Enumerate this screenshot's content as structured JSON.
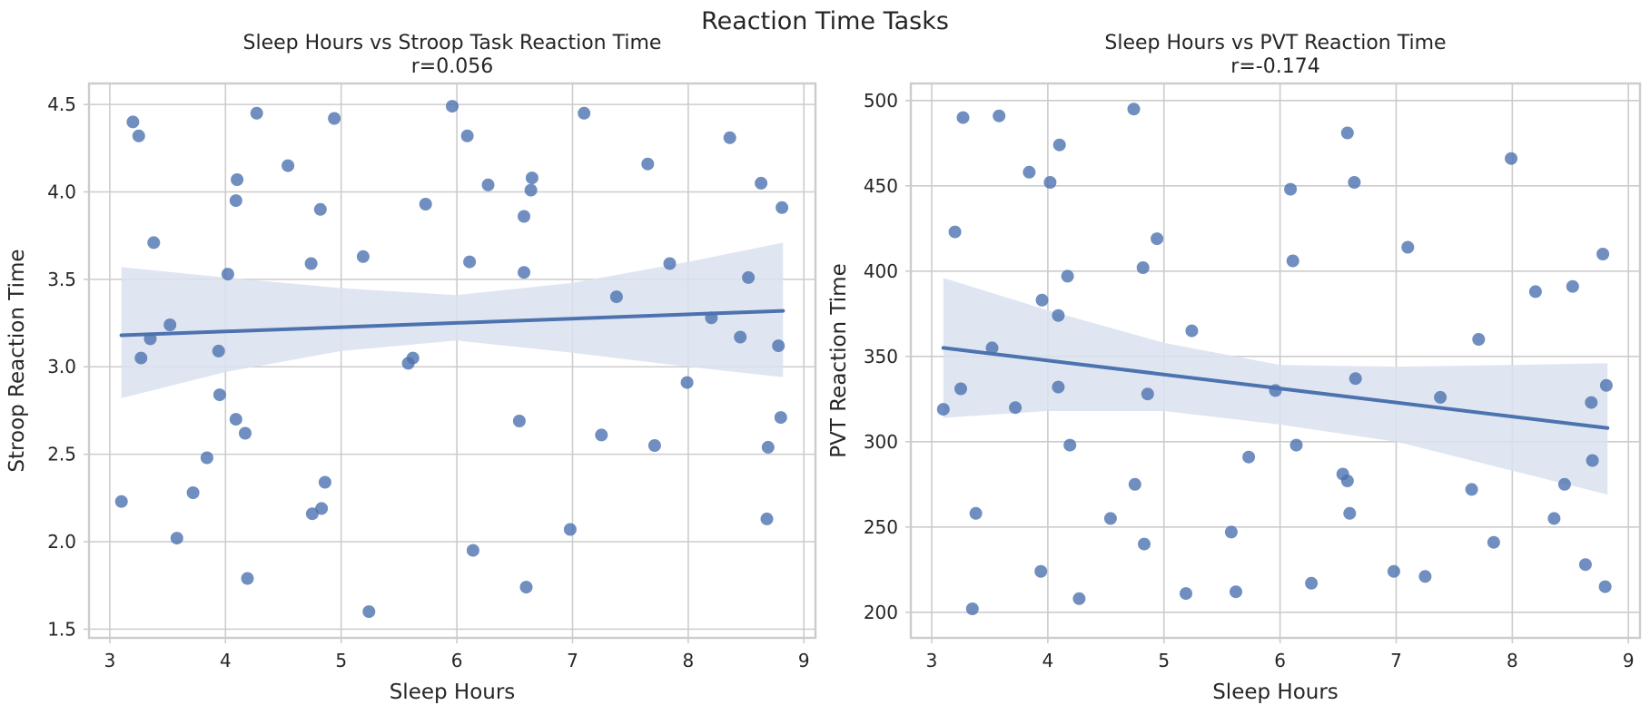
{
  "figure": {
    "suptitle": "Reaction Time Tasks"
  },
  "colors": {
    "point": "#4c72b0",
    "line": "#4c72b0",
    "band": "#dbe2ef",
    "grid": "#cccccc",
    "frame": "#cccccc",
    "text": "#262626"
  },
  "chart_data": [
    {
      "type": "scatter",
      "title": "Sleep Hours vs Stroop Task Reaction Time",
      "subtitle": "r=0.056",
      "xlabel": "Sleep Hours",
      "ylabel": "Stroop Reaction Time",
      "xlim": [
        2.82,
        9.1
      ],
      "ylim": [
        1.45,
        4.62
      ],
      "xticks": [
        3,
        4,
        5,
        6,
        7,
        8,
        9
      ],
      "yticks": [
        1.5,
        2.0,
        2.5,
        3.0,
        3.5,
        4.0,
        4.5
      ],
      "ytick_labels": [
        "1.5",
        "2.0",
        "2.5",
        "3.0",
        "3.5",
        "4.0",
        "4.5"
      ],
      "grid": true,
      "regression": {
        "x": [
          3.1,
          8.82
        ],
        "y": [
          3.18,
          3.32
        ]
      },
      "ci_band": {
        "x": [
          3.1,
          4.0,
          5.0,
          6.0,
          7.0,
          8.0,
          8.82
        ],
        "lower": [
          2.82,
          2.97,
          3.09,
          3.15,
          3.08,
          3.0,
          2.94
        ],
        "upper": [
          3.57,
          3.51,
          3.45,
          3.41,
          3.48,
          3.6,
          3.71
        ]
      },
      "x": [
        3.1,
        3.2,
        3.25,
        3.27,
        3.35,
        3.38,
        3.52,
        3.58,
        3.72,
        3.84,
        3.94,
        3.95,
        4.02,
        4.09,
        4.09,
        4.1,
        4.17,
        4.19,
        4.27,
        4.54,
        4.74,
        4.75,
        4.82,
        4.83,
        4.86,
        4.94,
        5.19,
        5.24,
        5.58,
        5.62,
        5.73,
        5.96,
        6.09,
        6.11,
        6.14,
        6.27,
        6.54,
        6.58,
        6.58,
        6.6,
        6.64,
        6.65,
        6.98,
        7.1,
        7.25,
        7.38,
        7.65,
        7.71,
        7.84,
        7.99,
        8.2,
        8.36,
        8.45,
        8.52,
        8.63,
        8.68,
        8.69,
        8.78,
        8.8,
        8.81
      ],
      "y": [
        2.23,
        4.4,
        4.32,
        3.05,
        3.16,
        3.71,
        3.24,
        2.02,
        2.28,
        2.48,
        3.09,
        2.84,
        3.53,
        2.7,
        3.95,
        4.07,
        2.62,
        1.79,
        4.45,
        4.15,
        3.59,
        2.16,
        3.9,
        2.19,
        2.34,
        4.42,
        3.63,
        1.6,
        3.02,
        3.05,
        3.93,
        4.49,
        4.32,
        3.6,
        1.95,
        4.04,
        2.69,
        3.54,
        3.86,
        1.74,
        4.01,
        4.08,
        2.07,
        4.45,
        2.61,
        3.4,
        4.16,
        2.55,
        3.59,
        2.91,
        3.28,
        4.31,
        3.17,
        3.51,
        4.05,
        2.13,
        2.54,
        3.12,
        2.71,
        3.91
      ]
    },
    {
      "type": "scatter",
      "title": "Sleep Hours vs PVT Reaction Time",
      "subtitle": "r=-0.174",
      "xlabel": "Sleep Hours",
      "ylabel": "PVT Reaction Time",
      "xlim": [
        2.82,
        9.1
      ],
      "ylim": [
        185,
        510
      ],
      "xticks": [
        3,
        4,
        5,
        6,
        7,
        8,
        9
      ],
      "yticks": [
        200,
        250,
        300,
        350,
        400,
        450,
        500
      ],
      "ytick_labels": [
        "200",
        "250",
        "300",
        "350",
        "400",
        "450",
        "500"
      ],
      "grid": true,
      "regression": {
        "x": [
          3.1,
          8.82
        ],
        "y": [
          355,
          308
        ]
      },
      "ci_band": {
        "x": [
          3.1,
          4.0,
          5.0,
          6.0,
          7.0,
          8.0,
          8.82
        ],
        "lower": [
          314,
          318,
          318,
          310,
          300,
          283,
          269
        ],
        "upper": [
          396,
          377,
          358,
          345,
          344,
          345,
          346
        ]
      },
      "x": [
        3.1,
        3.2,
        3.25,
        3.27,
        3.35,
        3.38,
        3.52,
        3.58,
        3.72,
        3.84,
        3.94,
        3.95,
        4.02,
        4.09,
        4.09,
        4.1,
        4.17,
        4.19,
        4.27,
        4.54,
        4.74,
        4.75,
        4.82,
        4.83,
        4.86,
        4.94,
        5.19,
        5.24,
        5.58,
        5.62,
        5.73,
        5.96,
        6.09,
        6.11,
        6.14,
        6.27,
        6.54,
        6.58,
        6.58,
        6.6,
        6.64,
        6.65,
        6.98,
        7.1,
        7.25,
        7.38,
        7.65,
        7.71,
        7.84,
        7.99,
        8.2,
        8.36,
        8.45,
        8.52,
        8.63,
        8.68,
        8.69,
        8.78,
        8.8,
        8.81
      ],
      "y": [
        319,
        423,
        331,
        490,
        202,
        258,
        355,
        491,
        320,
        458,
        224,
        383,
        452,
        332,
        374,
        474,
        397,
        298,
        208,
        255,
        495,
        275,
        402,
        240,
        328,
        419,
        211,
        365,
        247,
        212,
        291,
        330,
        448,
        406,
        298,
        217,
        281,
        277,
        481,
        258,
        452,
        337,
        224,
        414,
        221,
        326,
        272,
        360,
        241,
        466,
        388,
        255,
        275,
        391,
        228,
        323,
        289,
        410,
        215,
        333
      ]
    }
  ]
}
